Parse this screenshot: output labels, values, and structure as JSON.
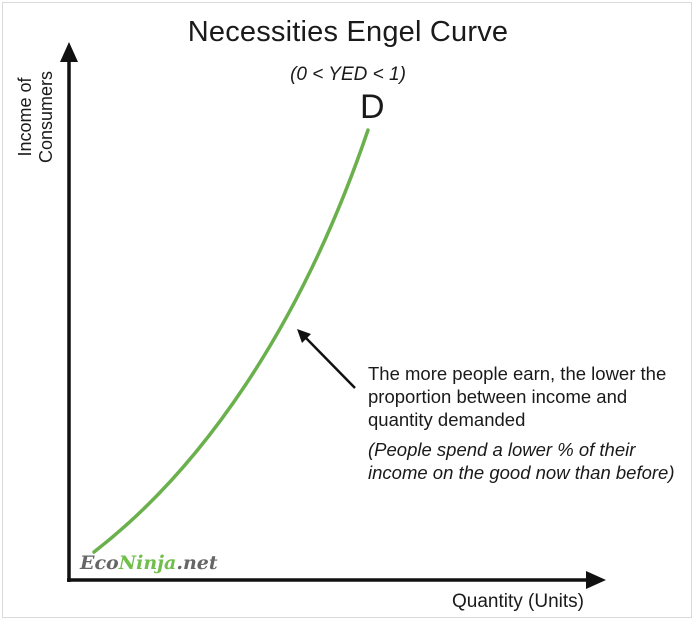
{
  "title": "Necessities Engel Curve",
  "subtitle": "(0 < YED < 1)",
  "axes": {
    "y_label": "Income of\nConsumers",
    "x_label": "Quantity (Units)"
  },
  "curve": {
    "label": "D",
    "color": "#6ab04c"
  },
  "annotation": {
    "text": "The more people earn, the lower the proportion between income and quantity demanded",
    "note": "(People spend a lower % of their income on the good now than before)"
  },
  "watermark": {
    "part1": "Eco",
    "part2": "Ninja",
    "part3": ".net"
  }
}
